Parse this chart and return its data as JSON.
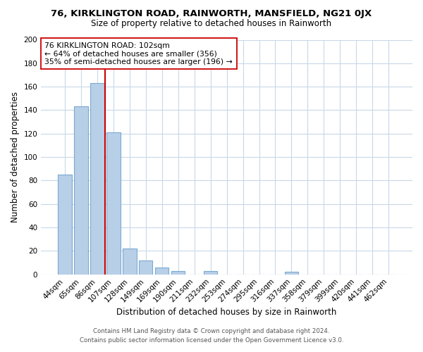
{
  "title": "76, KIRKLINGTON ROAD, RAINWORTH, MANSFIELD, NG21 0JX",
  "subtitle": "Size of property relative to detached houses in Rainworth",
  "xlabel": "Distribution of detached houses by size in Rainworth",
  "ylabel": "Number of detached properties",
  "bar_labels": [
    "44sqm",
    "65sqm",
    "86sqm",
    "107sqm",
    "128sqm",
    "149sqm",
    "169sqm",
    "190sqm",
    "211sqm",
    "232sqm",
    "253sqm",
    "274sqm",
    "295sqm",
    "316sqm",
    "337sqm",
    "358sqm",
    "379sqm",
    "399sqm",
    "420sqm",
    "441sqm",
    "462sqm"
  ],
  "bar_heights": [
    85,
    143,
    163,
    121,
    22,
    12,
    6,
    3,
    0,
    3,
    0,
    0,
    0,
    0,
    2,
    0,
    0,
    0,
    0,
    0,
    0
  ],
  "bar_color": "#b8cfe8",
  "bar_edge_color": "#7aaad0",
  "highlight_line_color": "#cc0000",
  "annotation_line1": "76 KIRKLINGTON ROAD: 102sqm",
  "annotation_line2": "← 64% of detached houses are smaller (356)",
  "annotation_line3": "35% of semi-detached houses are larger (196) →",
  "ylim": [
    0,
    200
  ],
  "yticks": [
    0,
    20,
    40,
    60,
    80,
    100,
    120,
    140,
    160,
    180,
    200
  ],
  "footer_line1": "Contains HM Land Registry data © Crown copyright and database right 2024.",
  "footer_line2": "Contains public sector information licensed under the Open Government Licence v3.0.",
  "bg_color": "#ffffff",
  "grid_color": "#c8d8e8"
}
